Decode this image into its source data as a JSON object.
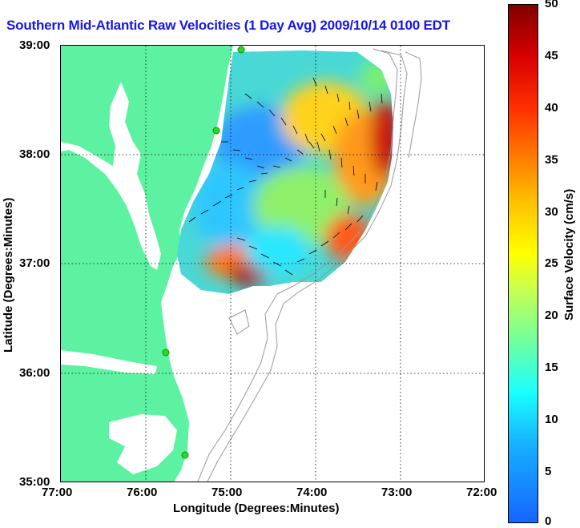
{
  "title": "Southern Mid-Atlantic Raw Velocities (1 Day Avg) 2009/10/14 0100 EDT",
  "xlabel": "Longitude (Degrees:Minutes)",
  "ylabel": "Latitude (Degrees:Minutes)",
  "x_ticks": [
    "77:00",
    "76:00",
    "75:00",
    "74:00",
    "73:00",
    "72:00"
  ],
  "y_ticks": [
    "39:00",
    "38:00",
    "37:00",
    "36:00",
    "35:00"
  ],
  "colorbar": {
    "label": "Surface Velocity (cm/s)",
    "ticks": [
      "50",
      "45",
      "40",
      "35",
      "30",
      "25",
      "20",
      "15",
      "10",
      "5",
      "0"
    ],
    "min": 0,
    "max": 50
  },
  "colors": {
    "land": "#5cf2a2",
    "title": "#1515f0",
    "grid": "#000000",
    "bathymetry": "#999999",
    "station": "#22dd22"
  },
  "map": {
    "lon_range": [
      "77:00",
      "72:00"
    ],
    "lat_range": [
      "35:00",
      "39:00"
    ],
    "grid": true,
    "stations": 5
  }
}
